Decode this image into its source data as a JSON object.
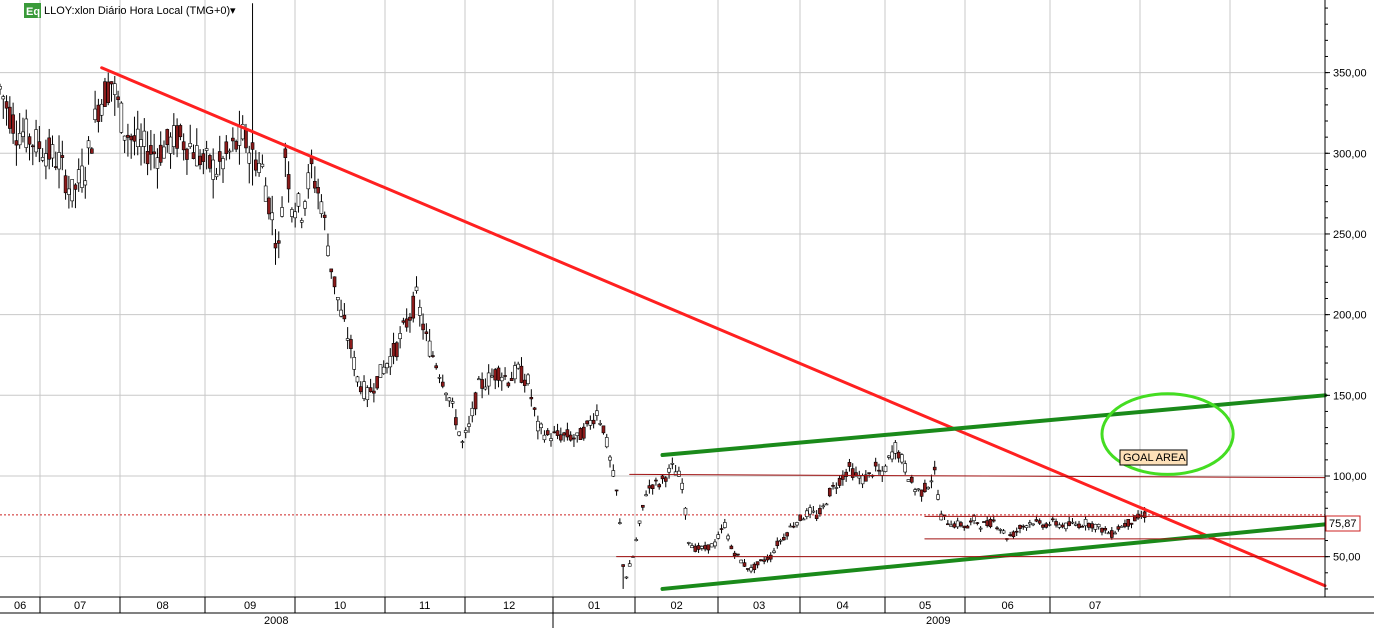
{
  "header": {
    "badge": "Eq",
    "title": "LLOY:xlon Diário Hora Local (TMG+0)",
    "dropdown_glyph": "▾"
  },
  "price_label": "75,87",
  "goal_label": "GOAL AREA",
  "colors": {
    "bull": "#ffffff",
    "bear": "#8b1a1a",
    "wick": "#000000",
    "downtrend": "#ff2020",
    "channel": "#1a8a1a",
    "goal_circle": "#44dd22",
    "level": "#a01010",
    "price_line": "#cc2222",
    "grid": "#c8c8c8",
    "badge_bg": "#3a9a3a",
    "goal_bg": "#fde0b8"
  },
  "chart_data": {
    "type": "candlestick",
    "title": "LLOY:xlon Diário Hora Local (TMG+0)",
    "ylim": [
      25,
      395
    ],
    "y_ticks": [
      50,
      100,
      150,
      200,
      250,
      300,
      350
    ],
    "y_tick_labels": [
      "50,00",
      "100,00",
      "150,00",
      "200,00",
      "250,00",
      "300,00",
      "350,00"
    ],
    "x_labels": [
      "06",
      "07",
      "08",
      "09",
      "10",
      "11",
      "12",
      "01",
      "02",
      "03",
      "04",
      "05",
      "06",
      "07"
    ],
    "years": [
      "2008",
      "2009"
    ],
    "last_price": 75.87,
    "grid": true,
    "price_path": [
      [
        0,
        340
      ],
      [
        5,
        315
      ],
      [
        12,
        305
      ],
      [
        18,
        295
      ],
      [
        22,
        275
      ],
      [
        26,
        290
      ],
      [
        30,
        330
      ],
      [
        34,
        345
      ],
      [
        38,
        315
      ],
      [
        42,
        305
      ],
      [
        48,
        300
      ],
      [
        54,
        310
      ],
      [
        58,
        305
      ],
      [
        62,
        295
      ],
      [
        66,
        290
      ],
      [
        70,
        300
      ],
      [
        74,
        310
      ],
      [
        77,
        300
      ],
      [
        80,
        290
      ],
      [
        82,
        270
      ],
      [
        85,
        240
      ],
      [
        87,
        300
      ],
      [
        89,
        270
      ],
      [
        92,
        265
      ],
      [
        95,
        290
      ],
      [
        98,
        270
      ],
      [
        101,
        230
      ],
      [
        104,
        200
      ],
      [
        107,
        180
      ],
      [
        109,
        160
      ],
      [
        112,
        150
      ],
      [
        115,
        160
      ],
      [
        118,
        170
      ],
      [
        121,
        180
      ],
      [
        124,
        195
      ],
      [
        127,
        210
      ],
      [
        130,
        185
      ],
      [
        133,
        170
      ],
      [
        136,
        155
      ],
      [
        139,
        135
      ],
      [
        141,
        120
      ],
      [
        143,
        130
      ],
      [
        146,
        155
      ],
      [
        149,
        160
      ],
      [
        152,
        165
      ],
      [
        155,
        160
      ],
      [
        158,
        165
      ],
      [
        161,
        158
      ],
      [
        164,
        130
      ],
      [
        167,
        125
      ],
      [
        170,
        125
      ],
      [
        173,
        125
      ],
      [
        176,
        123
      ],
      [
        179,
        130
      ],
      [
        182,
        140
      ],
      [
        184,
        130
      ],
      [
        186,
        110
      ],
      [
        188,
        90
      ],
      [
        189,
        70
      ],
      [
        190,
        45
      ],
      [
        191,
        38
      ],
      [
        193,
        50
      ],
      [
        195,
        70
      ],
      [
        197,
        90
      ],
      [
        199,
        95
      ],
      [
        201,
        95
      ],
      [
        203,
        100
      ],
      [
        205,
        105
      ],
      [
        207,
        100
      ],
      [
        208,
        95
      ],
      [
        210,
        60
      ],
      [
        212,
        55
      ],
      [
        215,
        55
      ],
      [
        218,
        58
      ],
      [
        221,
        70
      ],
      [
        223,
        55
      ],
      [
        225,
        50
      ],
      [
        227,
        45
      ],
      [
        229,
        42
      ],
      [
        231,
        45
      ],
      [
        233,
        48
      ],
      [
        235,
        50
      ],
      [
        237,
        58
      ],
      [
        239,
        62
      ],
      [
        241,
        68
      ],
      [
        243,
        72
      ],
      [
        245,
        75
      ],
      [
        247,
        78
      ],
      [
        249,
        75
      ],
      [
        251,
        80
      ],
      [
        253,
        90
      ],
      [
        255,
        95
      ],
      [
        257,
        100
      ],
      [
        259,
        105
      ],
      [
        261,
        100
      ],
      [
        263,
        98
      ],
      [
        265,
        100
      ],
      [
        267,
        105
      ],
      [
        269,
        100
      ],
      [
        271,
        110
      ],
      [
        273,
        118
      ],
      [
        275,
        110
      ],
      [
        277,
        100
      ],
      [
        279,
        92
      ],
      [
        281,
        90
      ],
      [
        283,
        95
      ],
      [
        285,
        102
      ],
      [
        287,
        75
      ],
      [
        289,
        72
      ],
      [
        291,
        70
      ],
      [
        293,
        70
      ],
      [
        295,
        68
      ],
      [
        297,
        73
      ],
      [
        299,
        70
      ],
      [
        301,
        70
      ],
      [
        303,
        72
      ],
      [
        305,
        68
      ],
      [
        307,
        62
      ],
      [
        309,
        64
      ],
      [
        311,
        68
      ],
      [
        313,
        70
      ],
      [
        315,
        72
      ],
      [
        317,
        70
      ],
      [
        319,
        70
      ],
      [
        321,
        71
      ],
      [
        323,
        70
      ],
      [
        325,
        69
      ],
      [
        327,
        70
      ],
      [
        329,
        70
      ],
      [
        331,
        71
      ],
      [
        333,
        70
      ],
      [
        335,
        68
      ],
      [
        337,
        66
      ],
      [
        339,
        64
      ],
      [
        341,
        68
      ],
      [
        343,
        70
      ],
      [
        345,
        72
      ],
      [
        347,
        74
      ],
      [
        349,
        76
      ]
    ],
    "lines": [
      {
        "name": "downtrend",
        "points": [
          [
            31,
            353
          ],
          [
            404,
            32
          ]
        ]
      },
      {
        "name": "channel-upper",
        "points": [
          [
            202,
            113
          ],
          [
            404,
            150
          ]
        ]
      },
      {
        "name": "channel-lower",
        "points": [
          [
            202,
            30
          ],
          [
            404,
            70
          ]
        ]
      },
      {
        "name": "resistance",
        "points": [
          [
            192,
            101
          ],
          [
            404,
            99
          ]
        ]
      },
      {
        "name": "support-1",
        "points": [
          [
            282,
            75
          ],
          [
            404,
            75
          ]
        ]
      },
      {
        "name": "support-2",
        "points": [
          [
            282,
            61
          ],
          [
            404,
            61
          ]
        ]
      },
      {
        "name": "support-3",
        "points": [
          [
            188,
            50
          ],
          [
            404,
            50
          ]
        ]
      }
    ],
    "goal_area": {
      "center": [
        356,
        126
      ],
      "radius_x": 20,
      "radius_y": 25
    }
  }
}
